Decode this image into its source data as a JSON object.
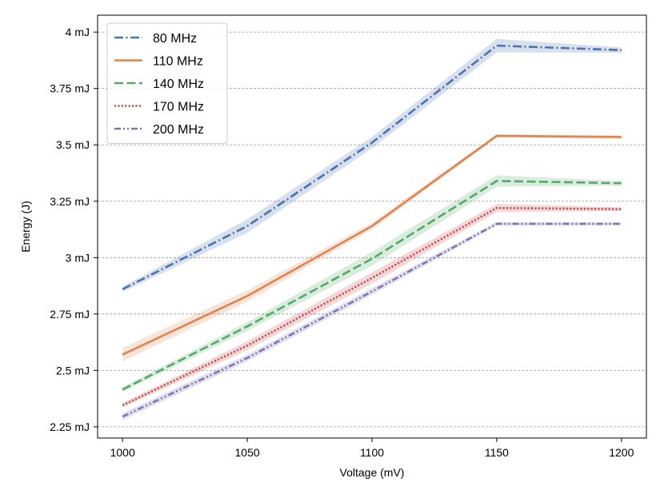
{
  "chart_data": {
    "type": "line",
    "title": "",
    "xlabel": "Voltage (mV)",
    "ylabel": "Energy (J)",
    "x": [
      1000,
      1050,
      1100,
      1150,
      1200
    ],
    "xlim": [
      990,
      1210
    ],
    "ylim": [
      2.2,
      4.075
    ],
    "x_ticks": [
      1000,
      1050,
      1100,
      1150,
      1200
    ],
    "y_ticks": [
      2.25,
      2.5,
      2.75,
      3.0,
      3.25,
      3.5,
      3.75,
      4.0
    ],
    "y_tick_labels": [
      "2.25 mJ",
      "2.5 mJ",
      "2.75 mJ",
      "3 mJ",
      "3.25 mJ",
      "3.5 mJ",
      "3.75 mJ",
      "4 mJ"
    ],
    "grid": "horizontal dashed",
    "legend_position": "top-left",
    "series": [
      {
        "name": "80 MHz",
        "values": [
          2.86,
          3.14,
          3.51,
          3.94,
          3.92
        ],
        "band": [
          0.012,
          0.03,
          0.025,
          0.03,
          0.012
        ],
        "color": "#4c72b0",
        "linestyle": "dashdot"
      },
      {
        "name": "110 MHz",
        "values": [
          2.57,
          2.83,
          3.14,
          3.54,
          3.535
        ],
        "band": [
          0.03,
          0.025,
          0.015,
          0.008,
          0.008
        ],
        "color": "#dd8452",
        "linestyle": "solid"
      },
      {
        "name": "140 MHz",
        "values": [
          2.415,
          2.695,
          2.995,
          3.34,
          3.33
        ],
        "band": [
          0.01,
          0.02,
          0.03,
          0.025,
          0.01
        ],
        "color": "#55a868",
        "linestyle": "dashed"
      },
      {
        "name": "170 MHz",
        "values": [
          2.345,
          2.61,
          2.91,
          3.22,
          3.215
        ],
        "band": [
          0.01,
          0.02,
          0.025,
          0.018,
          0.008
        ],
        "color": "#c44e52",
        "linestyle": "dotted"
      },
      {
        "name": "200 MHz",
        "values": [
          2.295,
          2.555,
          2.85,
          3.15,
          3.15
        ],
        "band": [
          0.015,
          0.015,
          0.015,
          0.008,
          0.008
        ],
        "color": "#8172b3",
        "linestyle": "dashdotdot"
      }
    ]
  }
}
